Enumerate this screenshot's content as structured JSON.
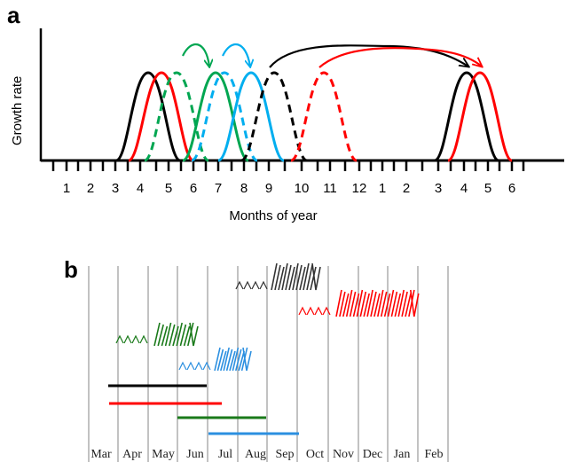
{
  "panel_a": {
    "label": "a",
    "y_axis_label": "Growth rate",
    "x_axis_label": "Months of year",
    "tick_labels": [
      "1",
      "2",
      "3",
      "4",
      "5",
      "6",
      "7",
      "8",
      "9",
      "10",
      "11",
      "12",
      "1",
      "2",
      "3",
      "4",
      "5",
      "6"
    ]
  },
  "panel_b": {
    "label": "b",
    "months": [
      "Mar",
      "Apr",
      "May",
      "Jun",
      "Jul",
      "Aug",
      "Sep",
      "Oct",
      "Nov",
      "Dec",
      "Jan",
      "Feb"
    ]
  },
  "colors": {
    "black": "#000000",
    "red": "#ff0000",
    "green": "#00a651",
    "blue": "#00aeef",
    "dark_green": "#1a7a1a",
    "light_blue": "#2b8fe0",
    "dark_gray": "#333333",
    "grid": "#9a9a9a"
  }
}
